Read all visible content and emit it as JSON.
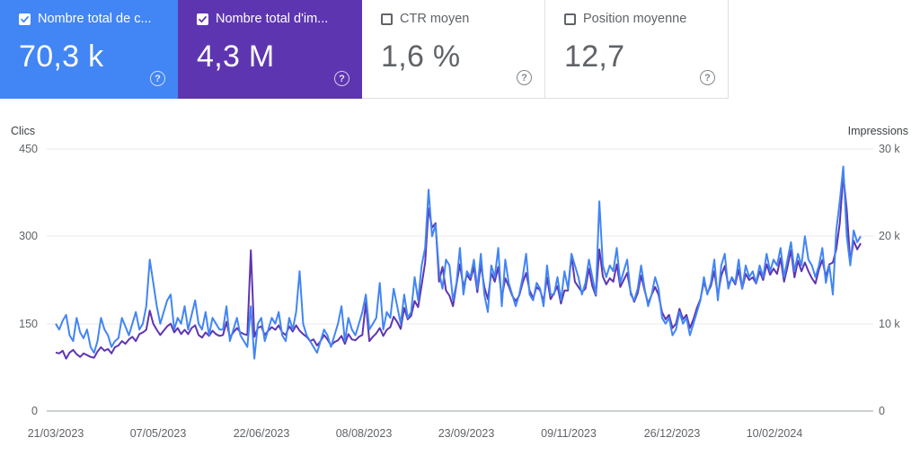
{
  "cards": [
    {
      "label": "Nombre total de c...",
      "value": "70,3 k",
      "checked": true,
      "color": "#4285f4"
    },
    {
      "label": "Nombre total d'im...",
      "value": "4,3 M",
      "checked": true,
      "color": "#5e35b1"
    },
    {
      "label": "CTR moyen",
      "value": "1,6 %",
      "checked": false,
      "color": "#ffffff"
    },
    {
      "label": "Position moyenne",
      "value": "12,7",
      "checked": false,
      "color": "#ffffff"
    }
  ],
  "help_glyph": "?",
  "chart_data": {
    "type": "line",
    "y_left_label": "Clics",
    "y_right_label": "Impressions",
    "y_left_ticks": [
      "450",
      "300",
      "150",
      "0"
    ],
    "y_right_ticks": [
      "30 k",
      "20 k",
      "10 k",
      "0"
    ],
    "y_left_range": [
      0,
      450
    ],
    "y_right_range": [
      0,
      30000
    ],
    "x_tick_labels": [
      "21/03/2023",
      "07/05/2023",
      "22/06/2023",
      "08/08/2023",
      "23/09/2023",
      "09/11/2023",
      "26/12/2023",
      "10/02/2024"
    ],
    "x_range": [
      "2023-03-21",
      "2024-03-21"
    ],
    "grid": true,
    "series": [
      {
        "name": "Clics",
        "axis": "left",
        "color": "#4285f4",
        "values": [
          150,
          140,
          155,
          165,
          130,
          120,
          160,
          135,
          125,
          140,
          110,
          100,
          120,
          160,
          140,
          130,
          110,
          120,
          125,
          160,
          145,
          130,
          150,
          170,
          140,
          150,
          180,
          260,
          220,
          180,
          150,
          170,
          190,
          200,
          140,
          160,
          150,
          180,
          140,
          165,
          190,
          150,
          140,
          170,
          130,
          160,
          150,
          140,
          140,
          180,
          120,
          140,
          160,
          130,
          120,
          110,
          180,
          90,
          150,
          160,
          120,
          140,
          160,
          150,
          170,
          130,
          120,
          160,
          140,
          170,
          240,
          150,
          130,
          120,
          110,
          100,
          120,
          140,
          130,
          110,
          130,
          150,
          180,
          120,
          160,
          140,
          130,
          150,
          170,
          200,
          140,
          150,
          160,
          220,
          140,
          170,
          160,
          210,
          180,
          150,
          200,
          160,
          170,
          230,
          190,
          250,
          280,
          380,
          300,
          320,
          240,
          210,
          260,
          250,
          190,
          220,
          280,
          200,
          240,
          230,
          260,
          210,
          270,
          200,
          170,
          250,
          230,
          280,
          180,
          260,
          220,
          200,
          180,
          200,
          230,
          270,
          200,
          190,
          220,
          210,
          180,
          250,
          200,
          200,
          230,
          190,
          240,
          210,
          270,
          250,
          230,
          200,
          220,
          260,
          230,
          200,
          360,
          250,
          230,
          250,
          240,
          280,
          220,
          240,
          260,
          200,
          190,
          210,
          250,
          210,
          180,
          200,
          230,
          210,
          160,
          150,
          160,
          130,
          140,
          170,
          150,
          160,
          130,
          150,
          170,
          190,
          230,
          200,
          220,
          260,
          190,
          250,
          270,
          210,
          230,
          220,
          260,
          210,
          250,
          230,
          240,
          220,
          250,
          230,
          270,
          240,
          260,
          250,
          280,
          230,
          260,
          290,
          240,
          270,
          250,
          300,
          260,
          250,
          230,
          250,
          280,
          220,
          250,
          200,
          310,
          360,
          420,
          300,
          250,
          310,
          290,
          300
        ]
      },
      {
        "name": "Impressions",
        "axis": "right",
        "color": "#5e35b1",
        "values": [
          6700,
          6600,
          6900,
          6000,
          6700,
          7000,
          6500,
          6200,
          6600,
          6400,
          6200,
          6100,
          6800,
          7300,
          6900,
          7100,
          6600,
          7300,
          7500,
          8000,
          7700,
          8200,
          8500,
          8000,
          8800,
          9000,
          9300,
          11500,
          10000,
          9300,
          8700,
          9200,
          9700,
          10000,
          9000,
          9500,
          8800,
          9300,
          8800,
          9500,
          9800,
          8700,
          8400,
          9000,
          8600,
          9200,
          8800,
          8600,
          8700,
          10200,
          8400,
          9000,
          9500,
          9000,
          8800,
          8700,
          18400,
          8500,
          9500,
          9700,
          8700,
          9200,
          9600,
          9300,
          9800,
          9000,
          8700,
          9700,
          9100,
          9800,
          9200,
          8800,
          8500,
          8000,
          8200,
          7500,
          8000,
          8700,
          8200,
          7500,
          7900,
          8100,
          8600,
          7700,
          8800,
          8200,
          8100,
          8500,
          8700,
          12400,
          8000,
          8500,
          8900,
          9500,
          8600,
          9300,
          9600,
          10800,
          10200,
          9400,
          11800,
          10500,
          10900,
          12600,
          11900,
          14400,
          17000,
          23200,
          21000,
          21500,
          14800,
          16500,
          13800,
          13200,
          12000,
          14500,
          16800,
          14200,
          15600,
          15000,
          16500,
          13600,
          16800,
          14200,
          12800,
          15800,
          14800,
          16500,
          13000,
          15200,
          14300,
          13200,
          12600,
          13200,
          14700,
          15800,
          13800,
          12900,
          14200,
          13800,
          12600,
          15300,
          12800,
          13500,
          14300,
          12300,
          13800,
          13800,
          17800,
          14800,
          14200,
          13600,
          14000,
          16300,
          14300,
          13200,
          18500,
          15400,
          14500,
          15200,
          14800,
          16800,
          14200,
          15000,
          15800,
          13600,
          12500,
          13500,
          15500,
          13800,
          12300,
          13300,
          14200,
          13300,
          11300,
          10500,
          11000,
          9500,
          10000,
          11700,
          10500,
          11000,
          9500,
          10500,
          11800,
          12800,
          14800,
          13500,
          14300,
          16000,
          13200,
          15500,
          16600,
          14400,
          15200,
          14500,
          16200,
          14000,
          15700,
          15000,
          15300,
          14600,
          16000,
          15000,
          16800,
          15600,
          16300,
          15700,
          17500,
          14800,
          16500,
          18400,
          15300,
          17200,
          16000,
          17000,
          16000,
          15200,
          14600,
          16200,
          17300,
          15400,
          16800,
          17000,
          18500,
          21500,
          27000,
          23000,
          17000,
          19500,
          18500,
          19200
        ]
      }
    ]
  }
}
